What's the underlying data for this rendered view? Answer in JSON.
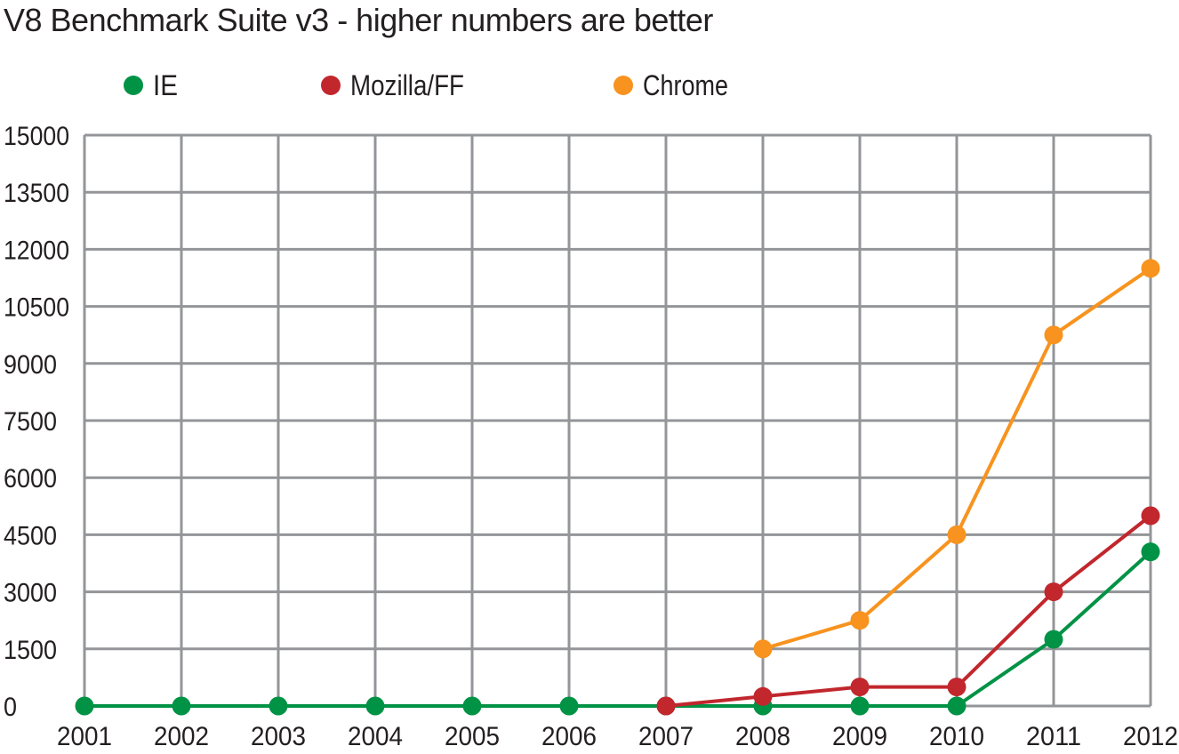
{
  "chart_data": {
    "type": "line",
    "title": "V8 Benchmark Suite v3 - higher numbers are better",
    "xlabel": "",
    "ylabel": "",
    "categories": [
      "2001",
      "2002",
      "2003",
      "2004",
      "2005",
      "2006",
      "2007",
      "2008",
      "2009",
      "2010",
      "2011",
      "2012"
    ],
    "ylim": [
      0,
      15000
    ],
    "yticks": [
      "0",
      "1500",
      "3000",
      "4500",
      "6000",
      "7500",
      "9000",
      "10500",
      "12000",
      "13500",
      "15000"
    ],
    "grid": true,
    "legend_position": "top",
    "series": [
      {
        "name": "IE",
        "color": "#009245",
        "values": [
          0,
          0,
          0,
          0,
          0,
          0,
          0,
          0,
          0,
          0,
          1750,
          4050
        ]
      },
      {
        "name": "Mozilla/FF",
        "color": "#c1272d",
        "values": [
          null,
          null,
          null,
          null,
          null,
          null,
          0,
          250,
          500,
          500,
          3000,
          5000
        ]
      },
      {
        "name": "Chrome",
        "color": "#f7931e",
        "values": [
          null,
          null,
          null,
          null,
          null,
          null,
          null,
          1500,
          2250,
          4500,
          9750,
          11500
        ]
      }
    ]
  }
}
